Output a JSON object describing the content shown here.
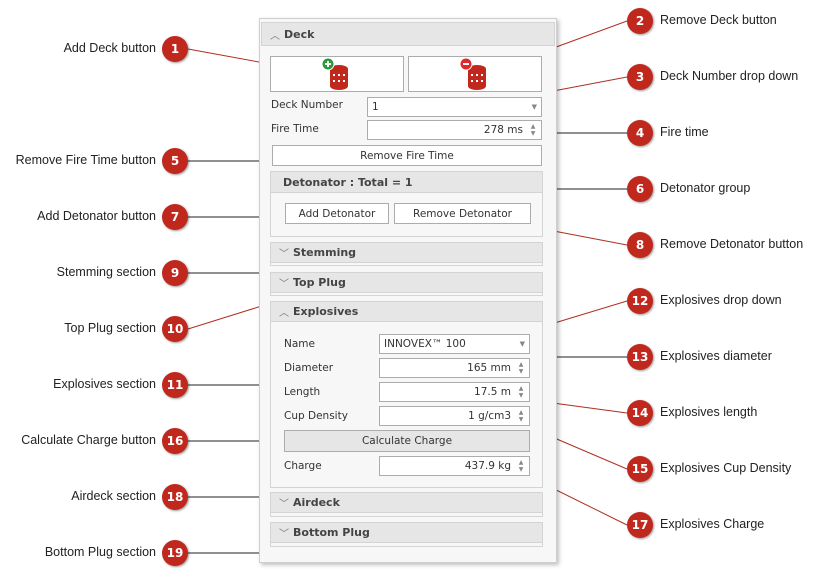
{
  "panel": {
    "deck": {
      "title": "Deck",
      "deck_number_label": "Deck Number",
      "deck_number_value": "1",
      "fire_time_label": "Fire Time",
      "fire_time_value": "278 ms",
      "remove_fire_time": "Remove Fire Time"
    },
    "detonator": {
      "title": "Detonator : Total = 1",
      "add": "Add Detonator",
      "remove": "Remove Detonator"
    },
    "stemming": {
      "title": "Stemming"
    },
    "top_plug": {
      "title": "Top Plug"
    },
    "explosives": {
      "title": "Explosives",
      "name_label": "Name",
      "name_value": "INNOVEX™ 100",
      "diameter_label": "Diameter",
      "diameter_value": "165 mm",
      "length_label": "Length",
      "length_value": "17.5 m",
      "cup_density_label": "Cup Density",
      "cup_density_value": "1 g/cm3",
      "calculate": "Calculate Charge",
      "charge_label": "Charge",
      "charge_value": "437.9 kg"
    },
    "airdeck": {
      "title": "Airdeck"
    },
    "bottom_plug": {
      "title": "Bottom Plug"
    }
  },
  "callouts": [
    {
      "n": "1",
      "label": "Add Deck button"
    },
    {
      "n": "2",
      "label": "Remove Deck button"
    },
    {
      "n": "3",
      "label": "Deck Number drop down"
    },
    {
      "n": "4",
      "label": "Fire time"
    },
    {
      "n": "5",
      "label": "Remove Fire Time button"
    },
    {
      "n": "6",
      "label": "Detonator group"
    },
    {
      "n": "7",
      "label": "Add Detonator button"
    },
    {
      "n": "8",
      "label": "Remove Detonator button"
    },
    {
      "n": "9",
      "label": "Stemming section"
    },
    {
      "n": "10",
      "label": "Top Plug section"
    },
    {
      "n": "11",
      "label": "Explosives section"
    },
    {
      "n": "12",
      "label": "Explosives drop down"
    },
    {
      "n": "13",
      "label": "Explosives diameter"
    },
    {
      "n": "14",
      "label": "Explosives length"
    },
    {
      "n": "15",
      "label": "Explosives Cup Density"
    },
    {
      "n": "16",
      "label": "Calculate Charge button"
    },
    {
      "n": "17",
      "label": "Explosives Charge"
    },
    {
      "n": "18",
      "label": "Airdeck section"
    },
    {
      "n": "19",
      "label": "Bottom Plug section"
    }
  ],
  "colors": {
    "badge": "#c0281e",
    "leader": "#b03020",
    "add_icon": "#2a9a3a",
    "remove_icon": "#e0282a",
    "deck_icon": "#c0281e"
  }
}
